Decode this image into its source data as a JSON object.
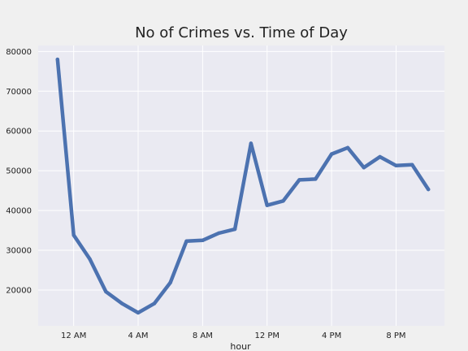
{
  "chart_data": {
    "type": "line",
    "title": "No of Crimes vs. Time of Day",
    "xlabel": "hour",
    "ylabel": "",
    "x": [
      -1,
      0,
      1,
      2,
      3,
      4,
      5,
      6,
      7,
      8,
      9,
      10,
      11,
      12,
      13,
      14,
      15,
      16,
      17,
      18,
      19,
      20,
      21,
      22
    ],
    "series": [
      {
        "values": [
          78000,
          33800,
          27800,
          19600,
          16600,
          14300,
          16600,
          21900,
          32300,
          32500,
          34300,
          35300,
          56900,
          41300,
          42400,
          47700,
          47900,
          54200,
          55800,
          50800,
          53500,
          51300,
          51500,
          45300
        ]
      }
    ],
    "xlim": [
      -2.2,
      23
    ],
    "ylim": [
      11000,
      81500
    ],
    "xticks": [
      {
        "value": 0,
        "label": "12 AM"
      },
      {
        "value": 4,
        "label": "4 AM"
      },
      {
        "value": 8,
        "label": "8 AM"
      },
      {
        "value": 12,
        "label": "12 PM"
      },
      {
        "value": 16,
        "label": "4 PM"
      },
      {
        "value": 20,
        "label": "8 PM"
      }
    ],
    "yticks": [
      {
        "value": 20000,
        "label": "20000"
      },
      {
        "value": 30000,
        "label": "30000"
      },
      {
        "value": 40000,
        "label": "40000"
      },
      {
        "value": 50000,
        "label": "50000"
      },
      {
        "value": 60000,
        "label": "60000"
      },
      {
        "value": 70000,
        "label": "70000"
      },
      {
        "value": 80000,
        "label": "80000"
      }
    ],
    "grid": true,
    "legend": "none",
    "colors": {
      "line": "#4c72b0",
      "plot_background": "#eaeaf2",
      "figure_background": "#f0f0f0",
      "grid": "#ffffff"
    }
  }
}
